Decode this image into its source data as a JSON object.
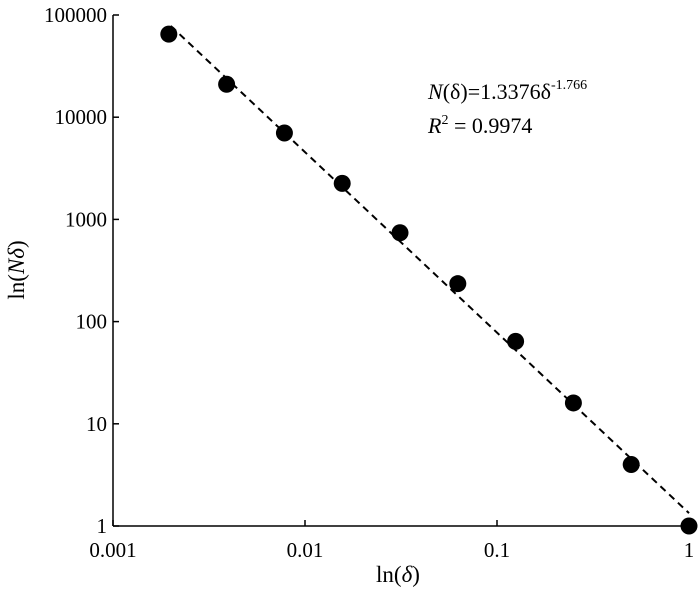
{
  "chart_data": {
    "type": "scatter",
    "x_scale": "log",
    "y_scale": "log",
    "xlim": [
      0.001,
      1
    ],
    "ylim": [
      1,
      100000
    ],
    "grid": false,
    "legend": "none",
    "xlabel": {
      "prefix": "ln(",
      "var": "δ",
      "suffix": ")"
    },
    "ylabel": {
      "prefix": "ln(",
      "var": "Nδ",
      "suffix": ")"
    },
    "x_ticks": [
      {
        "value": 0.001,
        "label": "0.001"
      },
      {
        "value": 0.01,
        "label": "0.01"
      },
      {
        "value": 0.1,
        "label": "0.1"
      },
      {
        "value": 1,
        "label": "1"
      }
    ],
    "y_ticks": [
      {
        "value": 1,
        "label": "1"
      },
      {
        "value": 10,
        "label": "10"
      },
      {
        "value": 100,
        "label": "100"
      },
      {
        "value": 1000,
        "label": "1000"
      },
      {
        "value": 10000,
        "label": "10000"
      },
      {
        "value": 100000,
        "label": "100000"
      }
    ],
    "series": [
      {
        "x": [
          0.001953,
          0.003906,
          0.007813,
          0.015625,
          0.03125,
          0.0625,
          0.125,
          0.25,
          0.5,
          1
        ],
        "y": [
          65000,
          21000,
          7000,
          2250,
          740,
          235,
          64,
          16,
          4,
          1
        ]
      }
    ],
    "fit": {
      "coefficient": 1.3376,
      "exponent": -1.766,
      "x_range": [
        0.002,
        1
      ],
      "style": "dashed"
    },
    "annotation": {
      "eq_lhs_var": "N",
      "eq_lhs_rest": "(δ)=1.3376δ",
      "eq_exp": "-1.766",
      "r2_var": "R",
      "r2_sup": "2",
      "r2_rest": " = 0.9974"
    }
  },
  "colors": {
    "marker": "#000000",
    "axis": "#000000",
    "fit_line": "#000000"
  }
}
